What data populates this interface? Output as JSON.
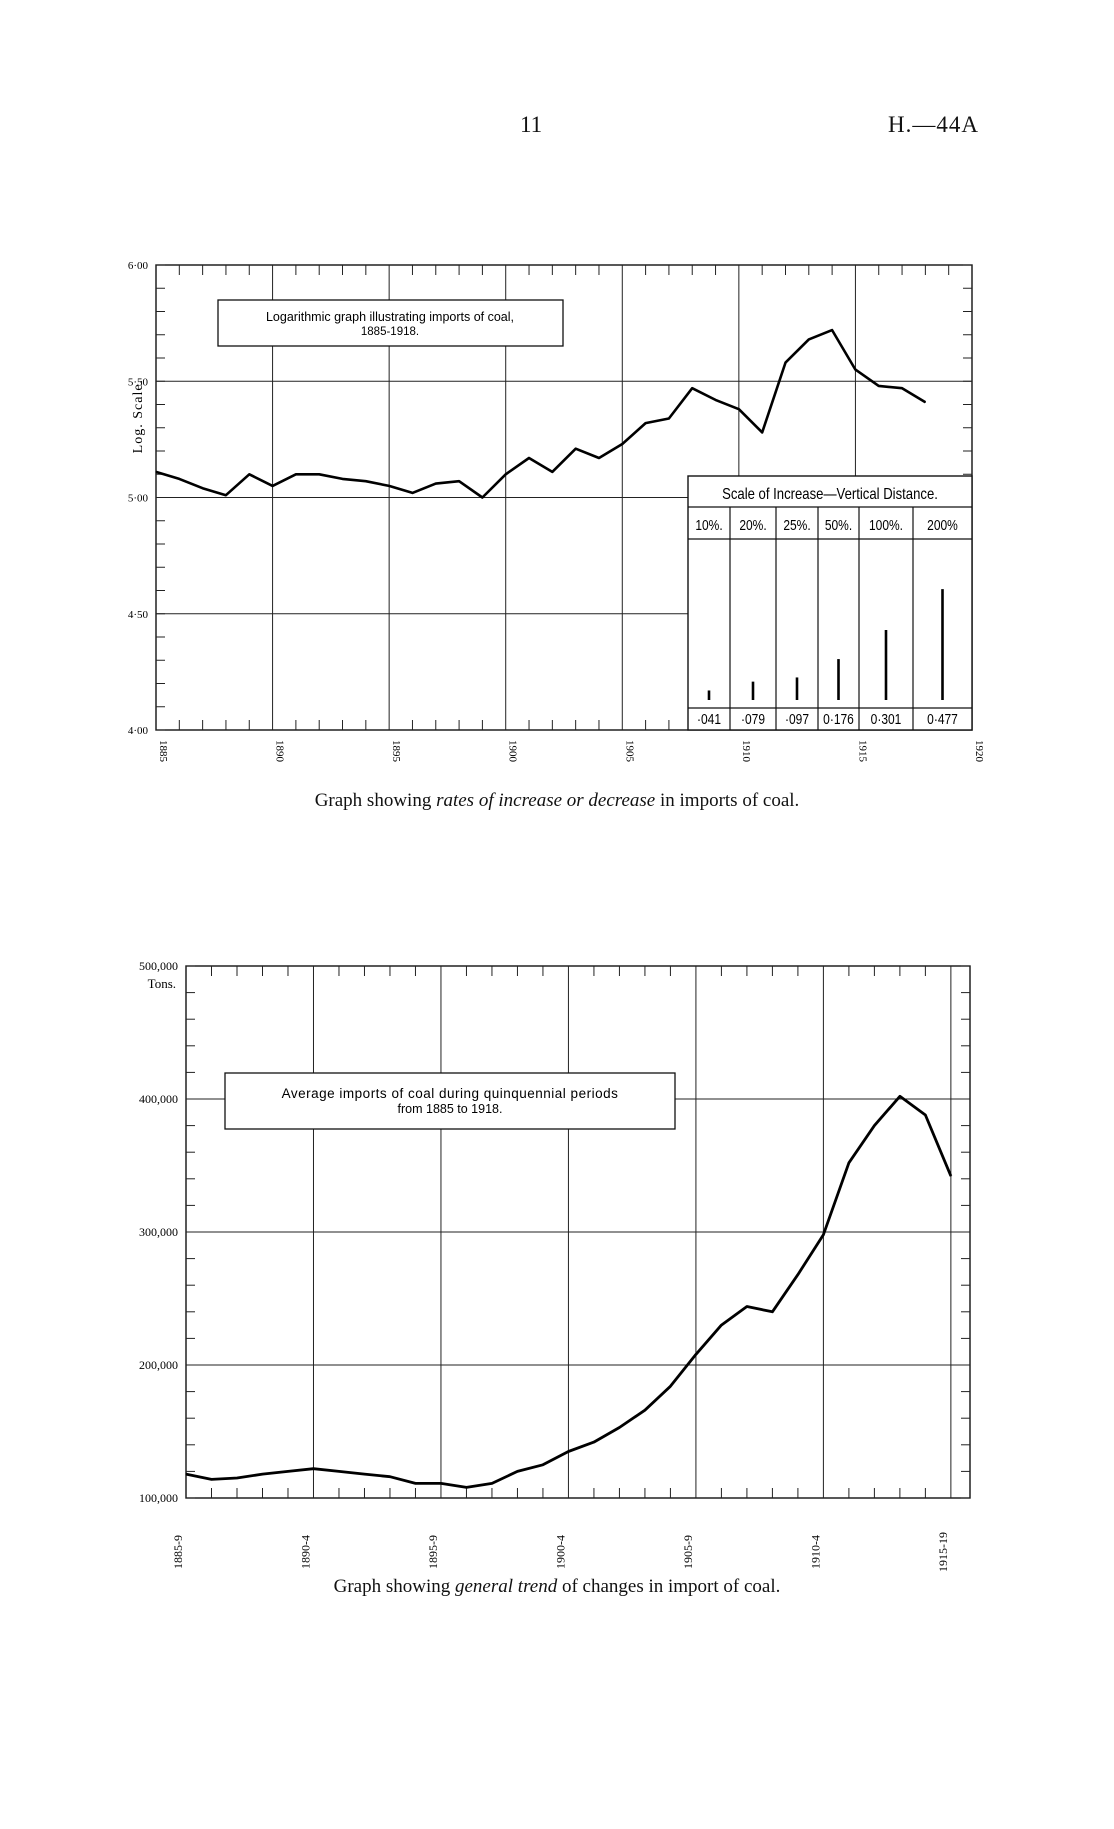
{
  "header": {
    "page_number": "11",
    "doc_ref": "H.—44A"
  },
  "chart_data": [
    {
      "type": "line",
      "title": "Logarithmic graph illustrating imports of coal, 1885-1918.",
      "title_line1": "Logarithmic graph illustrating imports of coal,",
      "title_line2": "1885-1918.",
      "ylabel": "Log. Scale.",
      "xlim": [
        1885,
        1920
      ],
      "ylim": [
        4.0,
        6.0
      ],
      "x_ticks": [
        "1885",
        "1890",
        "1895",
        "1900",
        "1905",
        "1910",
        "1915",
        "1920"
      ],
      "y_ticks": [
        "4·00",
        "4·50",
        "5·00",
        "5·50",
        "6·00"
      ],
      "grid": true,
      "x": [
        1885,
        1886,
        1887,
        1888,
        1889,
        1890,
        1891,
        1892,
        1893,
        1894,
        1895,
        1896,
        1897,
        1898,
        1899,
        1900,
        1901,
        1902,
        1903,
        1904,
        1905,
        1906,
        1907,
        1908,
        1909,
        1910,
        1911,
        1912,
        1913,
        1914,
        1915,
        1916,
        1917,
        1918
      ],
      "values": [
        5.11,
        5.08,
        5.04,
        5.01,
        5.1,
        5.05,
        5.1,
        5.1,
        5.08,
        5.07,
        5.05,
        5.02,
        5.06,
        5.07,
        5.0,
        5.1,
        5.17,
        5.11,
        5.21,
        5.17,
        5.23,
        5.32,
        5.34,
        5.47,
        5.42,
        5.38,
        5.28,
        5.58,
        5.68,
        5.72,
        5.55,
        5.48,
        5.47,
        5.41
      ],
      "inset": {
        "title": "Scale of Increase—Vertical Distance.",
        "headers": [
          "10%.",
          "20%.",
          "25%.",
          "50%.",
          "100%.",
          "200%"
        ],
        "values": [
          "·041",
          "·079",
          "·097",
          "0·176",
          "0·301",
          "0·477"
        ]
      },
      "caption_prefix": "Graph showing ",
      "caption_italic": "rates of increase or decrease",
      "caption_suffix": " in imports of coal."
    },
    {
      "type": "line",
      "title": "Average imports of coal during quinquennial periods from 1885 to 1918.",
      "title_line1": "Average imports of coal during quinquennial periods",
      "title_line2": "from 1885 to 1918.",
      "ylabel": "Tons.",
      "ylim": [
        100000,
        500000
      ],
      "y_ticks": [
        "100,000",
        "200,000",
        "300,000",
        "400,000",
        "500,000"
      ],
      "x_ticks": [
        "1885-9",
        "1890-4",
        "1895-9",
        "1900-4",
        "1905-9",
        "1910-4",
        "1915-19"
      ],
      "grid": true,
      "x": [
        0,
        0.5,
        1,
        1.5,
        2,
        2.5,
        3,
        3.5,
        4,
        4.5,
        5,
        5.5,
        6,
        6.5,
        7,
        7.5,
        8,
        8.5,
        9,
        9.5,
        10,
        10.5,
        11,
        11.5,
        12,
        12.5,
        13,
        13.5,
        14,
        14.5
      ],
      "values": [
        118000,
        114000,
        115000,
        118000,
        120000,
        122000,
        120000,
        118000,
        116000,
        111000,
        111000,
        108000,
        111000,
        120000,
        125000,
        135000,
        142000,
        153000,
        166000,
        184000,
        208000,
        230000,
        244000,
        240000,
        268000,
        298000,
        352000,
        380000,
        402000,
        388000
      ],
      "end_value": 342000,
      "caption_prefix": "Graph showing ",
      "caption_italic": "general trend",
      "caption_suffix": " of changes in import of coal."
    }
  ]
}
